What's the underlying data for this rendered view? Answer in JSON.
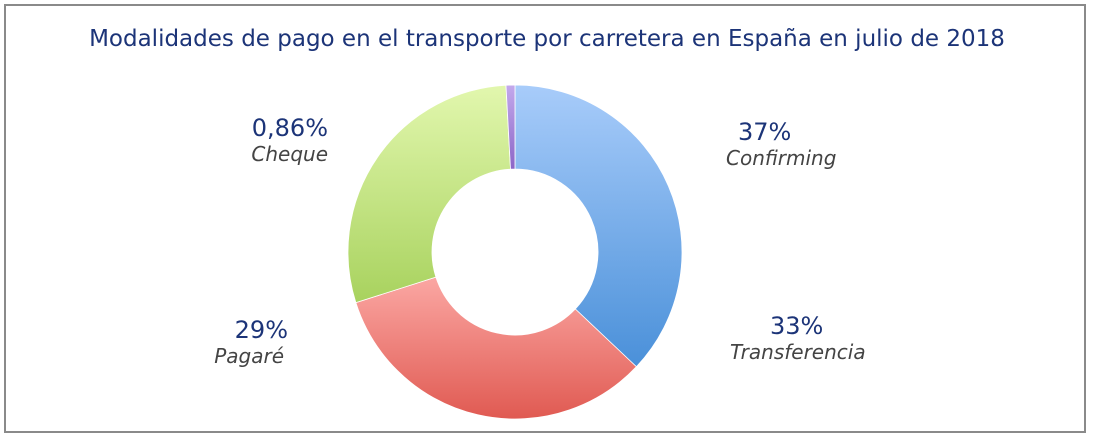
{
  "chart_data": {
    "type": "pie",
    "subtype": "donut",
    "title": "Modalidades de pago en el transporte por carretera en España en julio de 2018",
    "slices": [
      {
        "label": "Confirming",
        "value": 37,
        "value_label": "37%",
        "color": "#6aa3e3"
      },
      {
        "label": "Transferencia",
        "value": 33,
        "value_label": "33%",
        "color": "#ee7d78"
      },
      {
        "label": "Pagaré",
        "value": 29,
        "value_label": "29%",
        "color": "#bfe08a"
      },
      {
        "label": "Cheque",
        "value": 0.86,
        "value_label": "0,86%",
        "color": "#a688d6"
      }
    ]
  }
}
